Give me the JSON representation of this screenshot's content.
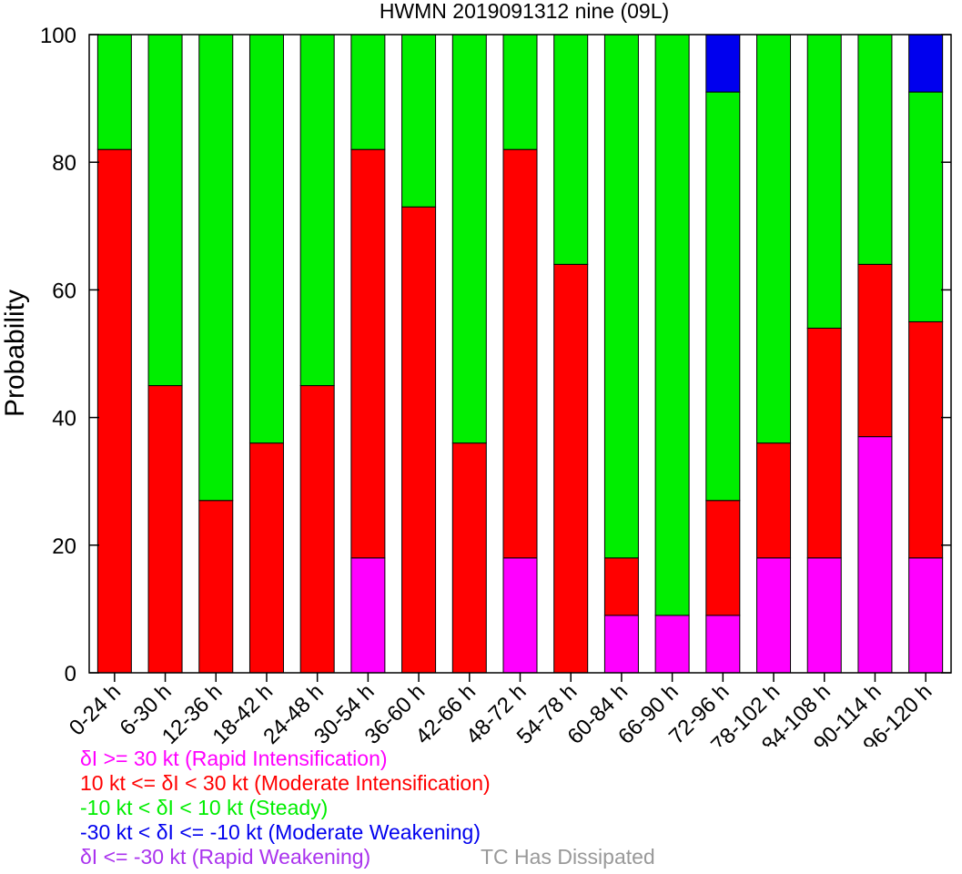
{
  "chart_data": {
    "type": "bar",
    "stacked": true,
    "title": "HWMN 2019091312 nine (09L)",
    "xlabel": "",
    "ylabel": "Probability",
    "ylim": [
      0,
      100
    ],
    "yticks": [
      0,
      20,
      40,
      60,
      80,
      100
    ],
    "grid": false,
    "categories": [
      "0-24 h",
      "6-30 h",
      "12-36 h",
      "18-42 h",
      "24-48 h",
      "30-54 h",
      "36-60 h",
      "42-66 h",
      "48-72 h",
      "54-78 h",
      "60-84 h",
      "66-90 h",
      "72-96 h",
      "78-102 h",
      "84-108 h",
      "90-114 h",
      "96-120 h"
    ],
    "series": [
      {
        "key": "ri",
        "color": "#ff00ff",
        "values": [
          0,
          0,
          0,
          0,
          0,
          18,
          0,
          0,
          18,
          0,
          9,
          9,
          9,
          18,
          18,
          37,
          18
        ]
      },
      {
        "key": "mi",
        "color": "#ff0000",
        "values": [
          82,
          45,
          27,
          36,
          45,
          64,
          73,
          36,
          64,
          64,
          9,
          0,
          18,
          18,
          36,
          27,
          37
        ]
      },
      {
        "key": "st",
        "color": "#00ee00",
        "values": [
          18,
          55,
          73,
          64,
          55,
          18,
          27,
          64,
          18,
          36,
          82,
          91,
          64,
          64,
          46,
          36,
          36
        ]
      },
      {
        "key": "mw",
        "color": "#0000ee",
        "values": [
          0,
          0,
          0,
          0,
          0,
          0,
          0,
          0,
          0,
          0,
          0,
          0,
          9,
          0,
          0,
          0,
          9
        ]
      },
      {
        "key": "rw",
        "color": "#aa33ee",
        "values": [
          0,
          0,
          0,
          0,
          0,
          0,
          0,
          0,
          0,
          0,
          0,
          0,
          0,
          0,
          0,
          0,
          0
        ]
      }
    ],
    "legend": [
      {
        "text": "δI >= 30 kt (Rapid Intensification)",
        "color": "#ff00ff"
      },
      {
        "text": "10 kt <= δI < 30 kt (Moderate Intensification)",
        "color": "#ff0000"
      },
      {
        "text": "-10 kt < δI < 10 kt (Steady)",
        "color": "#00ee00"
      },
      {
        "text": "-30 kt < δI <= -10 kt (Moderate Weakening)",
        "color": "#0000ee"
      },
      {
        "text": "δI <= -30 kt (Rapid Weakening)",
        "color": "#aa33ee"
      }
    ],
    "legend_placement": "bottom-left",
    "dissipated_label": "TC Has Dissipated",
    "dissipated_color": "#999999"
  }
}
